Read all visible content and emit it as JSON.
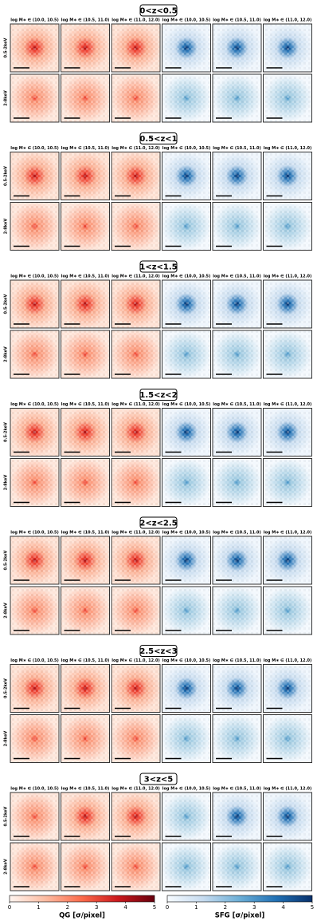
{
  "figure": {
    "groups": [
      {
        "title": "0<z<0.5"
      },
      {
        "title": "0.5<z<1"
      },
      {
        "title": "1<z<1.5"
      },
      {
        "title": "1.5<z<2"
      },
      {
        "title": "2<z<2.5"
      },
      {
        "title": "2.5<z<3"
      },
      {
        "title": "3<z<5"
      }
    ],
    "column_labels": [
      "log M∗ ∈ (10.0, 10.5)",
      "log M∗ ∈ (10.5, 11.0)",
      "log M∗ ∈ (11.0, 12.0)",
      "log M∗ ∈ (10.0, 10.5)",
      "log M∗ ∈ (10.5, 11.0)",
      "log M∗ ∈ (11.0, 12.0)"
    ],
    "row_labels": [
      "0.5-2keV",
      "2-8keV"
    ],
    "colorbars": [
      {
        "label": "QG [σ/pixel]",
        "clim": [
          0,
          5
        ],
        "ticks": [
          0,
          1,
          2,
          3,
          4,
          5
        ],
        "colors": [
          "#fff5f0",
          "#fcbba1",
          "#fb6a4a",
          "#cb181d",
          "#67000d"
        ]
      },
      {
        "label": "SFG [σ/pixel]",
        "clim": [
          0,
          5
        ],
        "ticks": [
          0,
          1,
          2,
          3,
          4,
          5
        ],
        "colors": [
          "#f7fbff",
          "#c6dbef",
          "#6baed6",
          "#2171b5",
          "#08306b"
        ]
      }
    ]
  }
}
